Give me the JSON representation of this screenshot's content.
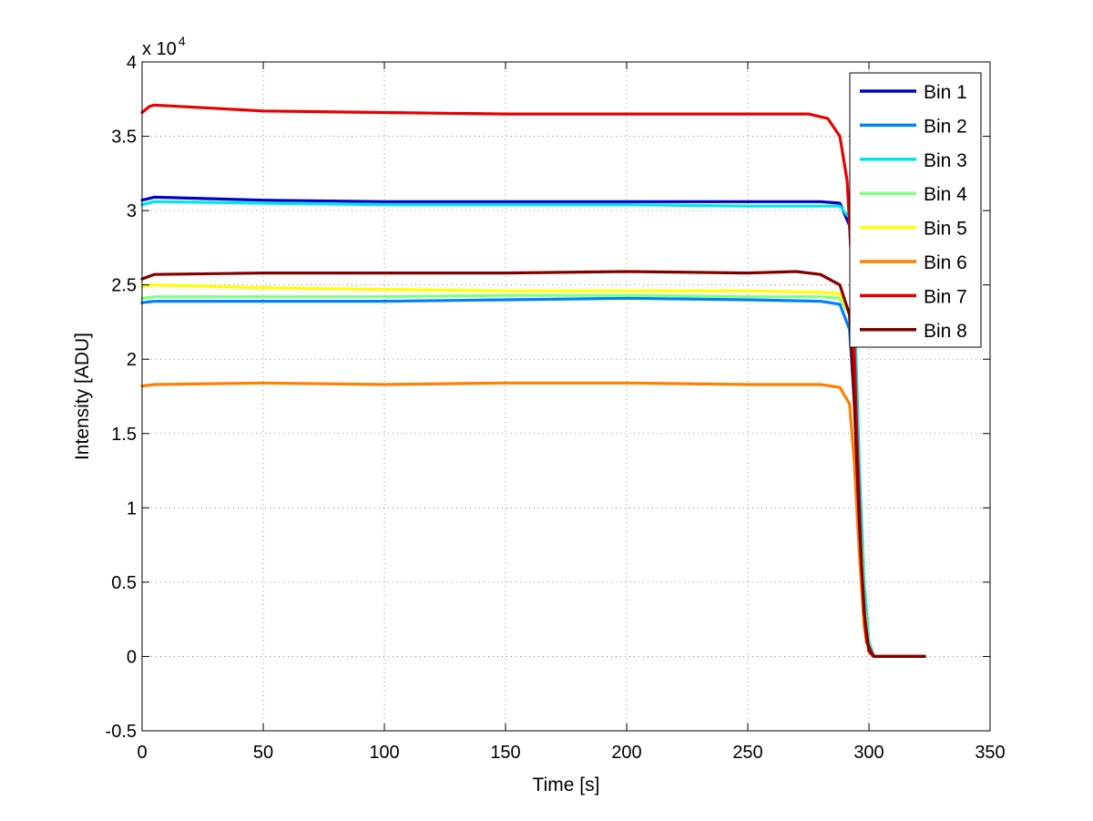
{
  "chart_data": {
    "type": "line",
    "title": "",
    "xlabel": "Time [s]",
    "ylabel": "Intensity [ADU]",
    "y_multiplier_base": "x 10",
    "y_multiplier_exponent": "4",
    "xlim": [
      0,
      350
    ],
    "ylim": [
      -0.5,
      4
    ],
    "xticks": [
      0,
      50,
      100,
      150,
      200,
      250,
      300,
      350
    ],
    "xtick_labels": [
      "0",
      "50",
      "100",
      "150",
      "200",
      "250",
      "300",
      "350"
    ],
    "yticks": [
      -0.5,
      0,
      0.5,
      1,
      1.5,
      2,
      2.5,
      3,
      3.5,
      4
    ],
    "ytick_labels": [
      "-0.5",
      "0",
      "0.5",
      "1",
      "1.5",
      "2",
      "2.5",
      "3",
      "3.5",
      "4"
    ],
    "grid": true,
    "legend_position": "top-right",
    "series": [
      {
        "name": "Bin 1",
        "color": "#0000c8",
        "x": [
          0,
          5,
          50,
          100,
          150,
          200,
          250,
          280,
          288,
          292,
          294,
          296,
          298,
          300,
          302,
          323
        ],
        "y": [
          3.07,
          3.09,
          3.07,
          3.06,
          3.06,
          3.06,
          3.06,
          3.06,
          3.05,
          2.9,
          2.3,
          1.2,
          0.4,
          0.05,
          0,
          0
        ]
      },
      {
        "name": "Bin 2",
        "color": "#0080ff",
        "x": [
          0,
          5,
          50,
          100,
          150,
          200,
          250,
          280,
          288,
          292,
          294,
          296,
          298,
          300,
          302,
          323
        ],
        "y": [
          2.38,
          2.39,
          2.39,
          2.39,
          2.4,
          2.41,
          2.4,
          2.39,
          2.37,
          2.2,
          1.7,
          0.9,
          0.3,
          0.04,
          0,
          0
        ]
      },
      {
        "name": "Bin 3",
        "color": "#00e6e6",
        "x": [
          0,
          5,
          50,
          100,
          150,
          200,
          250,
          280,
          288,
          292,
          294,
          296,
          298,
          300,
          302,
          323
        ],
        "y": [
          3.04,
          3.06,
          3.05,
          3.04,
          3.04,
          3.04,
          3.03,
          3.03,
          3.03,
          2.95,
          2.4,
          1.3,
          0.5,
          0.1,
          0,
          0
        ]
      },
      {
        "name": "Bin 4",
        "color": "#80ff80",
        "x": [
          0,
          5,
          50,
          100,
          150,
          200,
          250,
          280,
          288,
          292,
          294,
          296,
          298,
          300,
          302,
          323
        ],
        "y": [
          2.41,
          2.42,
          2.42,
          2.42,
          2.43,
          2.43,
          2.42,
          2.42,
          2.41,
          2.3,
          1.8,
          1.0,
          0.35,
          0.05,
          0,
          0
        ]
      },
      {
        "name": "Bin 5",
        "color": "#ffff00",
        "x": [
          0,
          5,
          50,
          100,
          150,
          200,
          250,
          280,
          288,
          292,
          294,
          296,
          298,
          300,
          302,
          323
        ],
        "y": [
          2.49,
          2.5,
          2.48,
          2.47,
          2.46,
          2.46,
          2.46,
          2.45,
          2.44,
          2.3,
          1.8,
          1.0,
          0.35,
          0.05,
          0,
          0
        ]
      },
      {
        "name": "Bin 6",
        "color": "#ff8000",
        "x": [
          0,
          5,
          50,
          100,
          150,
          200,
          250,
          280,
          288,
          292,
          294,
          296,
          298,
          300,
          302,
          323
        ],
        "y": [
          1.82,
          1.83,
          1.84,
          1.83,
          1.84,
          1.84,
          1.83,
          1.83,
          1.81,
          1.7,
          1.3,
          0.7,
          0.2,
          0.03,
          0,
          0
        ]
      },
      {
        "name": "Bin 7",
        "color": "#e60000",
        "x": [
          0,
          3,
          5,
          50,
          100,
          150,
          200,
          250,
          275,
          283,
          288,
          291,
          293,
          295,
          297,
          299,
          302,
          323
        ],
        "y": [
          3.66,
          3.7,
          3.71,
          3.67,
          3.66,
          3.65,
          3.65,
          3.65,
          3.65,
          3.62,
          3.5,
          3.2,
          2.6,
          1.5,
          0.6,
          0.1,
          0,
          0
        ]
      },
      {
        "name": "Bin 8",
        "color": "#800000",
        "x": [
          0,
          5,
          50,
          100,
          150,
          200,
          250,
          270,
          280,
          288,
          292,
          294,
          296,
          298,
          300,
          302,
          323
        ],
        "y": [
          2.54,
          2.57,
          2.58,
          2.58,
          2.58,
          2.59,
          2.58,
          2.59,
          2.57,
          2.5,
          2.3,
          1.7,
          0.9,
          0.3,
          0.04,
          0,
          0
        ]
      }
    ]
  }
}
